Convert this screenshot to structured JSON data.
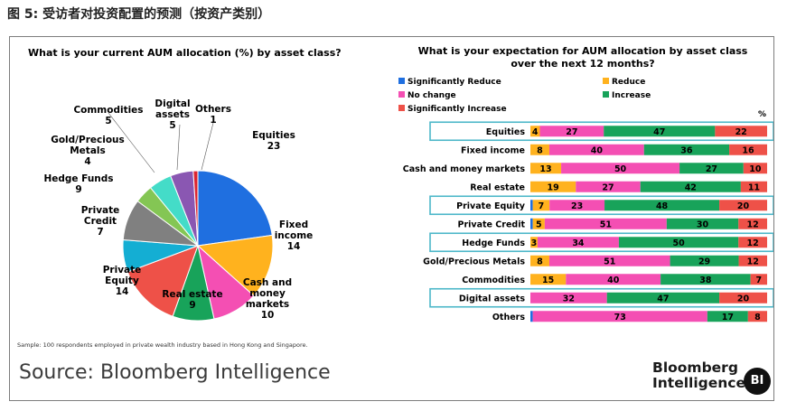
{
  "caption": "图 5: 受访者对投资配置的预测（按资产类别）",
  "sample_note": "Sample: 100 respondents employed in private wealth industry based in Hong Kong and Singapore.",
  "source": "Source: Bloomberg Intelligence",
  "brand": {
    "line1": "Bloomberg",
    "line2": "Intelligence",
    "badge": "BI"
  },
  "chart_data": [
    {
      "type": "pie",
      "title": "What is your current AUM allocation (%) by asset class?",
      "categories": [
        "Equities",
        "Fixed income",
        "Cash and money markets",
        "Real estate",
        "Private Equity",
        "Private Credit",
        "Hedge Funds",
        "Gold/Precious Metals",
        "Commodities",
        "Digital assets",
        "Others"
      ],
      "values": [
        23,
        14,
        10,
        9,
        14,
        7,
        9,
        4,
        5,
        5,
        1
      ],
      "colors": [
        "#1f6fe0",
        "#ffb21e",
        "#f44fb3",
        "#18a35a",
        "#ee5148",
        "#14aed3",
        "#808080",
        "#84c654",
        "#44dcc8",
        "#8a57b2",
        "#dc2430"
      ],
      "labels": [
        [
          "Equities",
          "23"
        ],
        [
          "Fixed",
          "income",
          "14"
        ],
        [
          "Cash and",
          "money",
          "markets",
          "10"
        ],
        [
          "Real estate",
          "9"
        ],
        [
          "Private",
          "Equity",
          "14"
        ],
        [
          "Private",
          "Credit",
          "7"
        ],
        [
          "Hedge Funds",
          "9"
        ],
        [
          "Gold/Precious",
          "Metals",
          "4"
        ],
        [
          "Commodities",
          "5"
        ],
        [
          "Digital",
          "assets",
          "5"
        ],
        [
          "Others",
          "1"
        ]
      ]
    },
    {
      "type": "bar",
      "orientation": "horizontal",
      "stacked": true,
      "title": "What is your expectation for AUM allocation by asset class over the next 12 months?",
      "unit_label": "%",
      "legend_position": "top-left",
      "categories": [
        "Equities",
        "Fixed income",
        "Cash and money markets",
        "Real estate",
        "Private Equity",
        "Private Credit",
        "Hedge Funds",
        "Gold/Precious Metals",
        "Commodities",
        "Digital assets",
        "Others"
      ],
      "highlighted": [
        "Equities",
        "Private Equity",
        "Hedge Funds",
        "Digital assets"
      ],
      "series": [
        {
          "name": "Significantly Reduce",
          "color": "#1f6fe0",
          "values": [
            0,
            0,
            0,
            0,
            1,
            1,
            0,
            0,
            0,
            0,
            1
          ]
        },
        {
          "name": "Reduce",
          "color": "#ffb21e",
          "values": [
            4,
            8,
            13,
            19,
            7,
            5,
            3,
            8,
            15,
            0,
            0
          ]
        },
        {
          "name": "No change",
          "color": "#f44fb3",
          "values": [
            27,
            40,
            50,
            27,
            23,
            51,
            34,
            51,
            40,
            32,
            73
          ]
        },
        {
          "name": "Increase",
          "color": "#18a35a",
          "values": [
            47,
            36,
            27,
            42,
            48,
            30,
            50,
            29,
            38,
            47,
            17
          ]
        },
        {
          "name": "Significantly Increase",
          "color": "#ee5148",
          "values": [
            22,
            16,
            10,
            11,
            20,
            12,
            12,
            12,
            7,
            20,
            8
          ]
        }
      ]
    }
  ]
}
